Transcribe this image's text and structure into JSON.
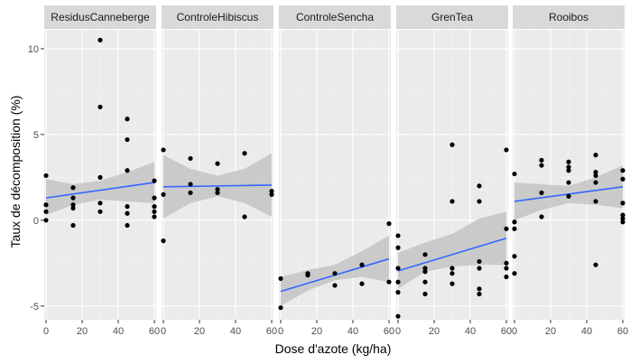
{
  "chart_data": {
    "type": "scatter",
    "layout": "faceted-columns",
    "xlabel": "Dose d'azote (kg/ha)",
    "ylabel": "Taux de décomposition (%)",
    "xlim": [
      -1,
      61
    ],
    "ylim": [
      -5.8,
      11.1
    ],
    "x_ticks": [
      0,
      20,
      40,
      60
    ],
    "x_tick_labels": [
      "0",
      "20",
      "40",
      "60"
    ],
    "y_ticks": [
      -5,
      0,
      5,
      10
    ],
    "y_tick_labels": [
      "-5",
      "0",
      "5",
      "10"
    ],
    "grid": true,
    "colors": {
      "panel_bg": "#ebebeb",
      "strip_bg": "#d9d9d9",
      "grid_major": "#ffffff",
      "grid_minor": "#f4f4f4",
      "point": "#000000",
      "fit_line": "#3366ff",
      "confidence_band": "#c4c4c4",
      "text": "#4d4d4d"
    },
    "facets": [
      {
        "name": "ResidusCanneberge",
        "points": [
          [
            0,
            2.6
          ],
          [
            0,
            0.9
          ],
          [
            0,
            0.5
          ],
          [
            0,
            0.0
          ],
          [
            15,
            1.9
          ],
          [
            15,
            1.3
          ],
          [
            15,
            0.9
          ],
          [
            15,
            0.7
          ],
          [
            15,
            -0.3
          ],
          [
            30,
            10.5
          ],
          [
            30,
            6.6
          ],
          [
            30,
            2.5
          ],
          [
            30,
            1.0
          ],
          [
            30,
            0.5
          ],
          [
            45,
            5.9
          ],
          [
            45,
            4.7
          ],
          [
            45,
            2.9
          ],
          [
            45,
            0.8
          ],
          [
            45,
            0.4
          ],
          [
            45,
            -0.3
          ],
          [
            60,
            2.3
          ],
          [
            60,
            1.3
          ],
          [
            60,
            0.8
          ],
          [
            60,
            0.5
          ],
          [
            60,
            0.2
          ]
        ],
        "fit": {
          "x": [
            0,
            60
          ],
          "y": [
            1.3,
            2.2
          ]
        },
        "band": {
          "x": [
            0,
            15,
            30,
            45,
            60
          ],
          "lower": [
            0.3,
            0.9,
            1.2,
            1.1,
            1.0
          ],
          "upper": [
            2.4,
            2.1,
            2.3,
            2.8,
            3.4
          ]
        }
      },
      {
        "name": "ControleHibiscus",
        "points": [
          [
            0,
            4.1
          ],
          [
            0,
            1.5
          ],
          [
            0,
            -1.2
          ],
          [
            15,
            3.6
          ],
          [
            15,
            2.1
          ],
          [
            15,
            1.6
          ],
          [
            30,
            3.3
          ],
          [
            30,
            1.8
          ],
          [
            30,
            1.6
          ],
          [
            45,
            3.9
          ],
          [
            45,
            0.2
          ],
          [
            60,
            1.7
          ],
          [
            60,
            1.5
          ]
        ],
        "fit": {
          "x": [
            0,
            60
          ],
          "y": [
            1.95,
            2.05
          ]
        },
        "band": {
          "x": [
            0,
            15,
            30,
            45,
            60
          ],
          "lower": [
            0.1,
            1.0,
            1.4,
            1.0,
            0.2
          ],
          "upper": [
            3.8,
            3.0,
            2.6,
            3.0,
            3.9
          ]
        }
      },
      {
        "name": "ControleSencha",
        "points": [
          [
            0,
            -3.4
          ],
          [
            0,
            -5.1
          ],
          [
            15,
            -3.1
          ],
          [
            15,
            -3.2
          ],
          [
            30,
            -3.1
          ],
          [
            30,
            -3.8
          ],
          [
            45,
            -2.6
          ],
          [
            45,
            -3.7
          ],
          [
            60,
            -0.2
          ],
          [
            60,
            -3.6
          ]
        ],
        "fit": {
          "x": [
            0,
            60
          ],
          "y": [
            -4.15,
            -2.25
          ]
        },
        "band": {
          "x": [
            0,
            15,
            30,
            45,
            60
          ],
          "lower": [
            -5.0,
            -4.1,
            -3.5,
            -3.3,
            -3.6
          ],
          "upper": [
            -3.3,
            -2.9,
            -2.6,
            -1.8,
            -0.9
          ]
        }
      },
      {
        "name": "GrenTea",
        "points": [
          [
            0,
            -0.9
          ],
          [
            0,
            -1.6
          ],
          [
            0,
            -2.8
          ],
          [
            0,
            -3.6
          ],
          [
            0,
            -4.2
          ],
          [
            0,
            -5.6
          ],
          [
            15,
            -2.0
          ],
          [
            15,
            -2.8
          ],
          [
            15,
            -3.0
          ],
          [
            15,
            -3.6
          ],
          [
            15,
            -4.3
          ],
          [
            30,
            4.4
          ],
          [
            30,
            1.1
          ],
          [
            30,
            -2.8
          ],
          [
            30,
            -3.1
          ],
          [
            30,
            -3.7
          ],
          [
            45,
            2.0
          ],
          [
            45,
            1.1
          ],
          [
            45,
            -2.4
          ],
          [
            45,
            -2.8
          ],
          [
            45,
            -4.0
          ],
          [
            45,
            -4.3
          ],
          [
            60,
            4.1
          ],
          [
            60,
            -0.5
          ],
          [
            60,
            -2.5
          ],
          [
            60,
            -2.8
          ],
          [
            60,
            -3.3
          ]
        ],
        "fit": {
          "x": [
            0,
            60
          ],
          "y": [
            -2.95,
            -1.05
          ]
        },
        "band": {
          "x": [
            0,
            15,
            30,
            45,
            60
          ],
          "lower": [
            -4.0,
            -3.0,
            -2.7,
            -2.6,
            -2.6
          ],
          "upper": [
            -1.9,
            -1.3,
            -0.8,
            0.1,
            0.5
          ]
        }
      },
      {
        "name": "Rooibos",
        "points": [
          [
            0,
            2.7
          ],
          [
            0,
            -0.1
          ],
          [
            0,
            -0.5
          ],
          [
            0,
            -2.1
          ],
          [
            0,
            -3.1
          ],
          [
            15,
            3.5
          ],
          [
            15,
            3.2
          ],
          [
            15,
            1.6
          ],
          [
            15,
            0.2
          ],
          [
            30,
            3.4
          ],
          [
            30,
            3.1
          ],
          [
            30,
            2.9
          ],
          [
            30,
            2.2
          ],
          [
            30,
            1.4
          ],
          [
            45,
            3.8
          ],
          [
            45,
            2.8
          ],
          [
            45,
            2.6
          ],
          [
            45,
            2.2
          ],
          [
            45,
            1.1
          ],
          [
            45,
            -2.6
          ],
          [
            60,
            2.9
          ],
          [
            60,
            2.4
          ],
          [
            60,
            1.0
          ],
          [
            60,
            0.3
          ],
          [
            60,
            0.1
          ],
          [
            60,
            -0.1
          ]
        ],
        "fit": {
          "x": [
            0,
            60
          ],
          "y": [
            1.1,
            1.95
          ]
        },
        "band": {
          "x": [
            0,
            15,
            30,
            45,
            60
          ],
          "lower": [
            0.0,
            0.6,
            1.0,
            0.9,
            0.7
          ],
          "upper": [
            2.2,
            2.1,
            2.0,
            2.5,
            3.2
          ]
        }
      }
    ]
  }
}
